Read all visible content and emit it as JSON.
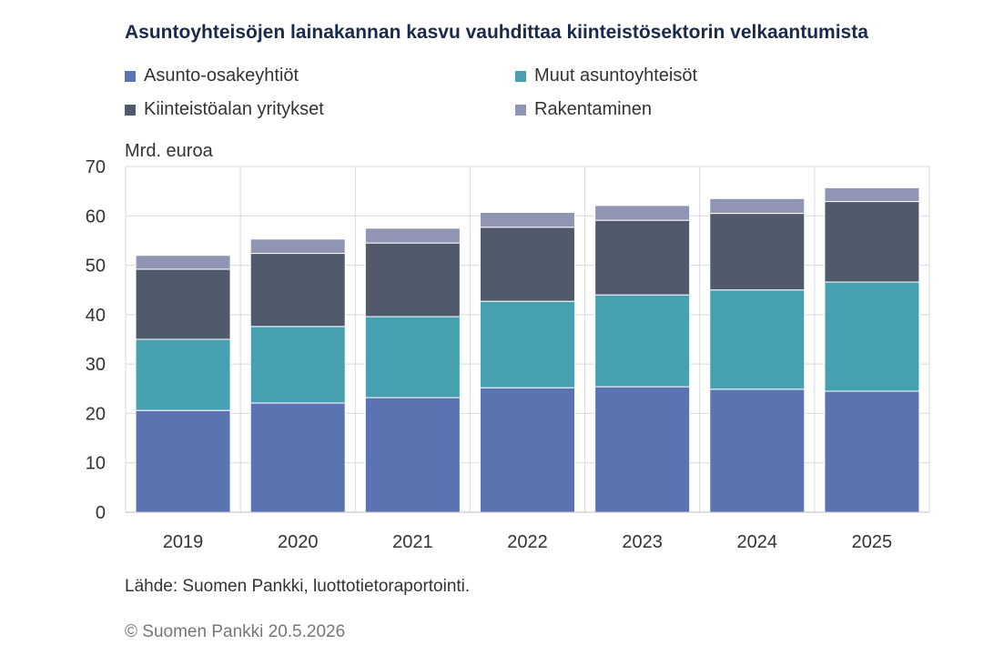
{
  "title": "Asuntoyhteisöjen lainakannan  kasvu vauhdittaa  kiinteistösektorin velkaantumista",
  "source": "Lähde: Suomen Pankki, luottotietoraportointi.",
  "copyright": "© Suomen Pankki 20.5.2026",
  "chart_data": {
    "type": "bar",
    "stacked": true,
    "categories": [
      "2019",
      "2020",
      "2021",
      "2022",
      "2023",
      "2024",
      "2025"
    ],
    "ylabel": "Mrd. euroa",
    "ylim": [
      0,
      70
    ],
    "yticks": [
      "0",
      "10",
      "20",
      "30",
      "40",
      "50",
      "60",
      "70"
    ],
    "grid": true,
    "legend_position": "top",
    "series": [
      {
        "name": "Asunto-osakeyhtiöt",
        "color": "#5b73b0",
        "values": [
          20.6,
          22.1,
          23.2,
          25.2,
          25.4,
          24.9,
          24.5
        ]
      },
      {
        "name": "Muut asuntoyhteisöt",
        "color": "#47a0b0",
        "values": [
          14.4,
          15.5,
          16.4,
          17.5,
          18.6,
          20.1,
          22.1
        ]
      },
      {
        "name": "Kiinteistöalan yritykset",
        "color": "#515a6b",
        "values": [
          14.2,
          14.8,
          14.9,
          15.0,
          15.1,
          15.5,
          16.3
        ]
      },
      {
        "name": "Rakentaminen",
        "color": "#8f95b3",
        "values": [
          2.8,
          2.9,
          3.0,
          3.0,
          3.0,
          3.0,
          2.8
        ]
      }
    ]
  }
}
